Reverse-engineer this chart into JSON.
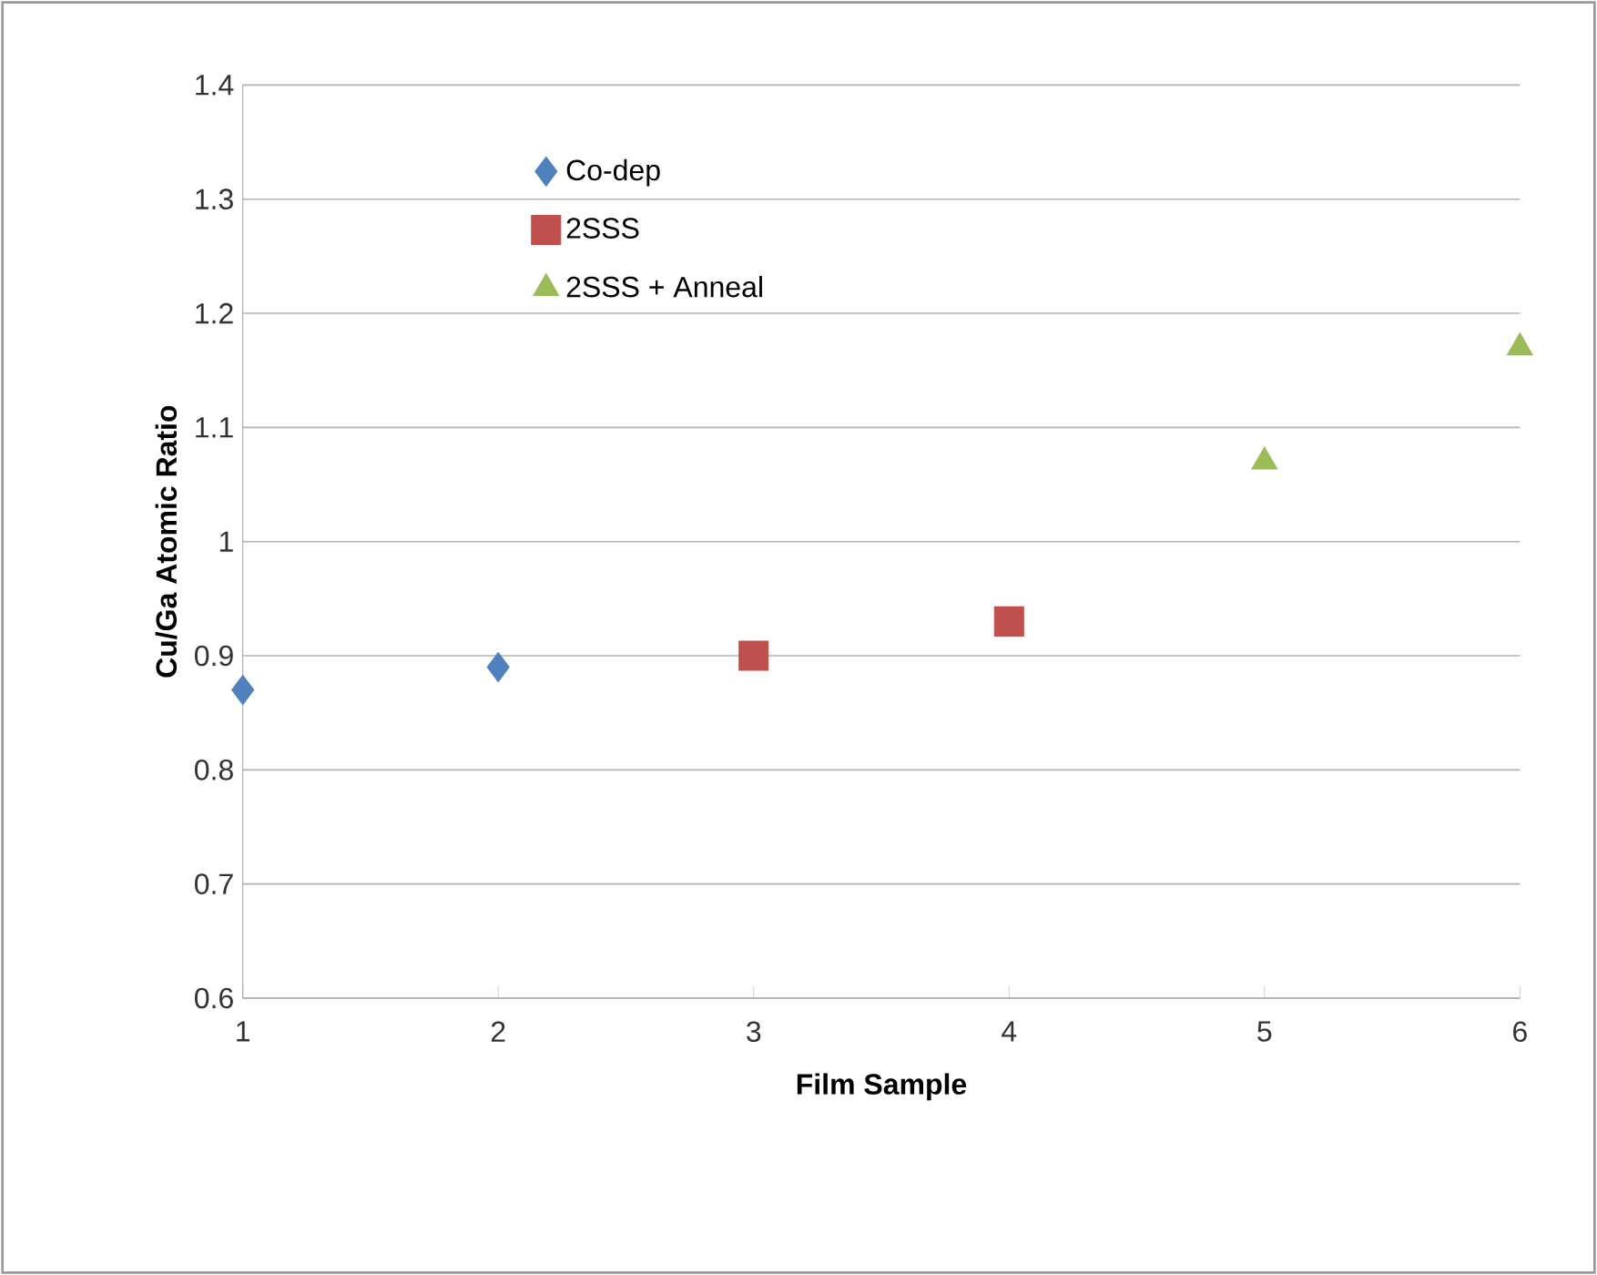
{
  "chart_data": {
    "type": "scatter",
    "xlabel": "Film Sample",
    "ylabel": "Cu/Ga Atomic Ratio",
    "xlim": [
      1,
      6
    ],
    "xticks": [
      1,
      2,
      3,
      4,
      5,
      6
    ],
    "ylim": [
      0.6,
      1.4
    ],
    "yticks": [
      0.6,
      0.7,
      0.8,
      0.9,
      {
        "value": 1,
        "label": "1"
      },
      1.1,
      1.2,
      1.3,
      1.4
    ],
    "grid": "y",
    "legend": "top left",
    "series": [
      {
        "name": "Co-dep",
        "color": "#4f81bd",
        "marker": "diamond",
        "x": [
          1,
          2
        ],
        "values": [
          0.87,
          0.89
        ]
      },
      {
        "name": "2SSS",
        "color": "#c0504d",
        "marker": "square",
        "x": [
          3,
          4
        ],
        "values": [
          0.9,
          0.93
        ]
      },
      {
        "name": "2SSS + Anneal",
        "color": "#9bbb59",
        "marker": "triangle",
        "x": [
          5,
          6
        ],
        "values": [
          1.07,
          1.17
        ]
      }
    ]
  }
}
